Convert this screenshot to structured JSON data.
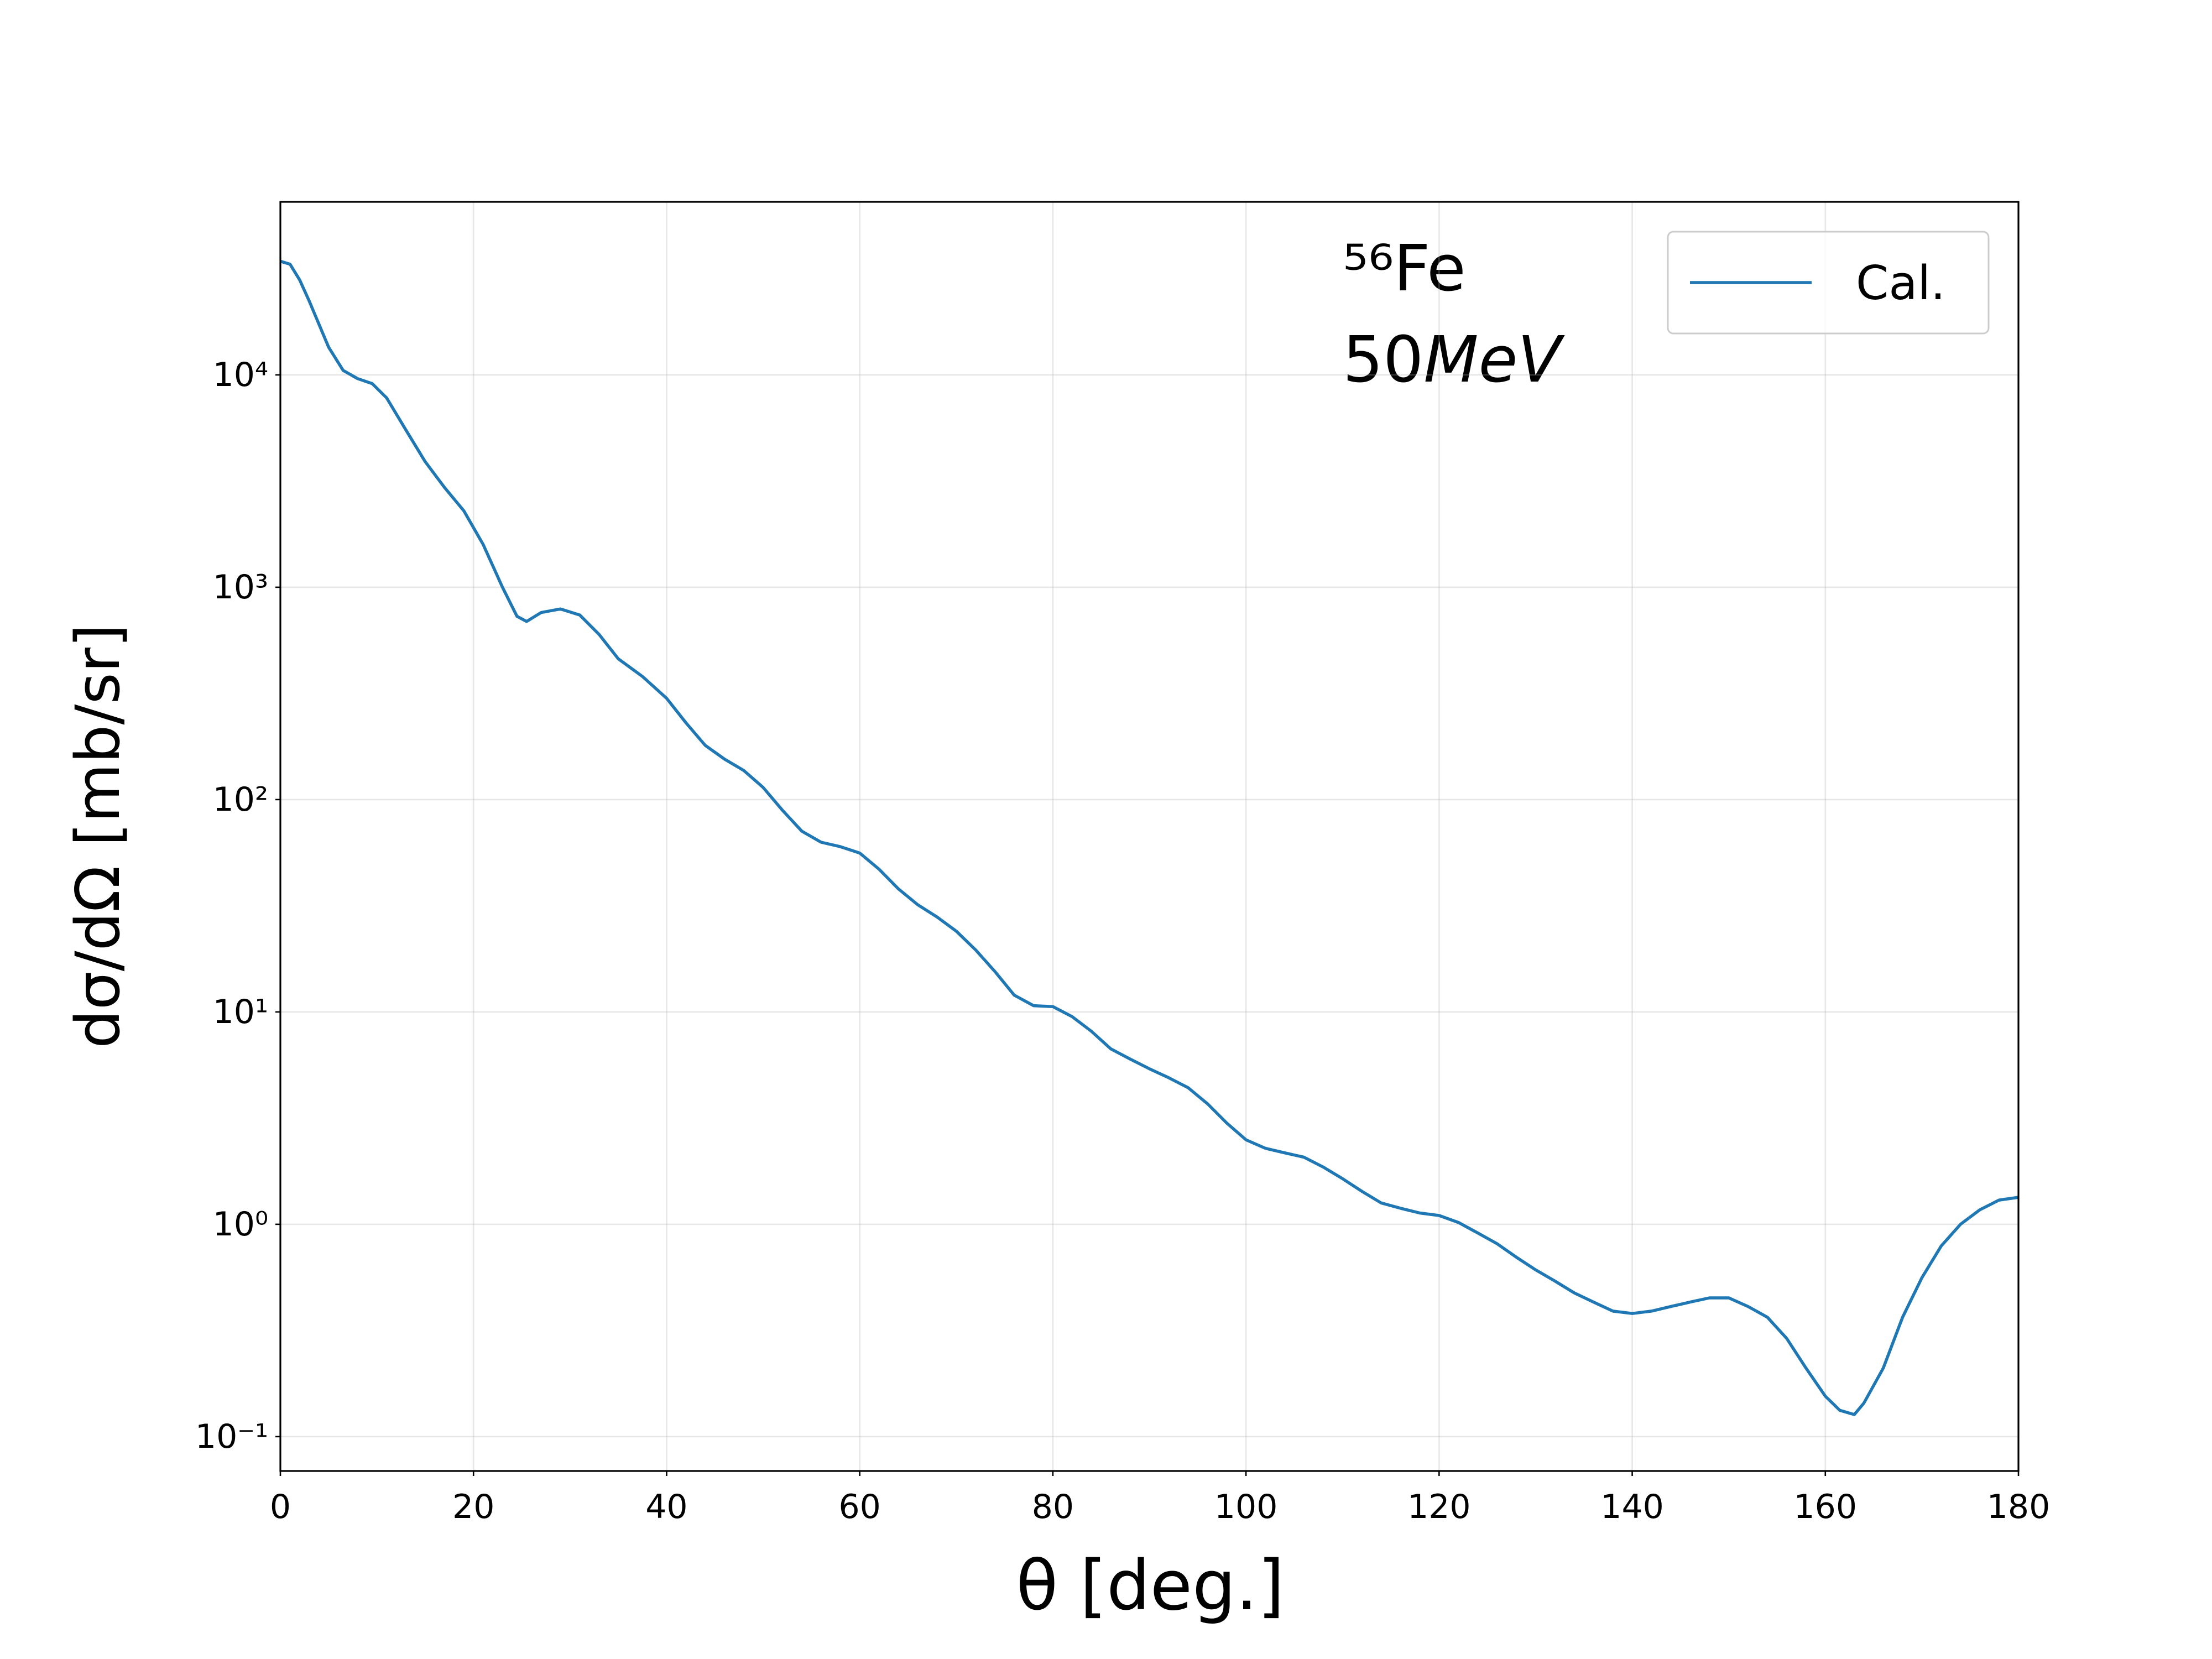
{
  "chart_data": {
    "type": "line",
    "x_label": "θ [deg.]",
    "y_label": "dσ/dΩ [mb/sr]",
    "annotation_nucleus": "⁵⁶Fe",
    "annotation_energy": "50",
    "annotation_energy_unit": "MeV",
    "xlim": [
      0,
      180
    ],
    "xticks": [
      0,
      20,
      40,
      60,
      80,
      100,
      120,
      140,
      160,
      180
    ],
    "ylim": [
      0.0689,
      65300
    ],
    "yticks": [
      {
        "value": 0.1,
        "label": "10⁻¹"
      },
      {
        "value": 1,
        "label": "10⁰"
      },
      {
        "value": 10,
        "label": "10¹"
      },
      {
        "value": 100,
        "label": "10²"
      },
      {
        "value": 1000,
        "label": "10³"
      },
      {
        "value": 10000,
        "label": "10⁴"
      }
    ],
    "log_y": true,
    "grid": true,
    "legend": "upper right",
    "x": [
      0,
      1,
      2,
      3,
      5,
      6.5,
      8,
      9.5,
      11,
      13,
      15,
      17,
      19,
      21,
      23,
      24.5,
      25.5,
      27,
      29,
      31,
      33,
      35,
      37.5,
      40,
      42,
      44,
      46,
      48,
      50,
      52,
      54,
      56,
      58,
      60,
      62,
      64,
      66,
      68,
      70,
      72,
      74,
      76,
      78,
      80,
      82,
      84,
      86,
      88,
      90,
      92,
      94,
      96,
      98,
      100,
      102,
      104,
      106,
      108,
      110,
      112,
      114,
      116,
      118,
      120,
      122,
      124,
      126,
      128,
      130,
      132,
      134,
      136,
      138,
      140,
      142,
      144,
      146,
      148,
      150,
      152,
      154,
      156,
      158,
      160,
      161.5,
      163,
      164,
      166,
      168,
      170,
      172,
      174,
      176,
      178,
      180
    ],
    "series": [
      {
        "name": "Cal.",
        "color": "#1f77b4",
        "values": [
          34300,
          33200,
          28000,
          22200,
          13500,
          10500,
          9600,
          9100,
          7800,
          5500,
          3900,
          2950,
          2290,
          1590,
          1000,
          730,
          690,
          760,
          790,
          740,
          600,
          460,
          380,
          300,
          230,
          180,
          155,
          137,
          114,
          89,
          71,
          63,
          60,
          56,
          47,
          38,
          32,
          28,
          24,
          19.6,
          15.5,
          12,
          10.7,
          10.6,
          9.5,
          8.1,
          6.7,
          6.0,
          5.4,
          4.9,
          4.4,
          3.7,
          3.0,
          2.5,
          2.28,
          2.17,
          2.07,
          1.86,
          1.64,
          1.43,
          1.26,
          1.19,
          1.13,
          1.1,
          1.02,
          0.91,
          0.81,
          0.7,
          0.61,
          0.54,
          0.475,
          0.43,
          0.39,
          0.38,
          0.39,
          0.41,
          0.43,
          0.45,
          0.45,
          0.41,
          0.365,
          0.29,
          0.21,
          0.155,
          0.133,
          0.127,
          0.144,
          0.21,
          0.365,
          0.56,
          0.79,
          1.0,
          1.17,
          1.3,
          1.34
        ]
      }
    ]
  }
}
